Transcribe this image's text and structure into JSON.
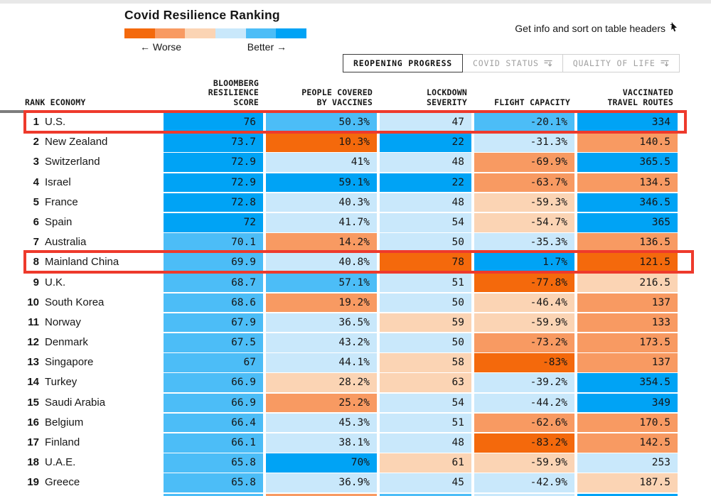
{
  "header": {
    "title": "Covid Resilience Ranking",
    "legend": {
      "worse": "← Worse",
      "better": "Better →",
      "colors": [
        "#f4690c",
        "#f89a62",
        "#fbd4b4",
        "#c9e8fb",
        "#4cbdf7",
        "#00a3f5"
      ]
    },
    "hint": "Get info and sort on table headers",
    "tabs": [
      {
        "label": "REOPENING PROGRESS",
        "active": true,
        "sort_icon": false
      },
      {
        "label": "COVID STATUS",
        "active": false,
        "sort_icon": true
      },
      {
        "label": "QUALITY OF LIFE",
        "active": false,
        "sort_icon": true
      }
    ]
  },
  "palette": {
    "c1": "#f4690c",
    "c2": "#f89a62",
    "c3": "#fbd4b4",
    "c4": "#c9e8fb",
    "c5": "#4cbdf7",
    "c6": "#00a3f5"
  },
  "table": {
    "headers": {
      "rank_economy": "RANK ECONOMY",
      "score": "BLOOMBERG\nRESILIENCE\nSCORE",
      "vaccines": "PEOPLE COVERED\nBY VACCINES",
      "lockdown": "LOCKDOWN\nSEVERITY",
      "flight": "FLIGHT CAPACITY",
      "routes": "VACCINATED\nTRAVEL ROUTES"
    },
    "rows": [
      {
        "rank": "1",
        "economy": "U.S.",
        "highlight": true,
        "score": {
          "v": "76",
          "c": "c6"
        },
        "vaccines": {
          "v": "50.3%",
          "c": "c5"
        },
        "lockdown": {
          "v": "47",
          "c": "c4"
        },
        "flight": {
          "v": "-20.1%",
          "c": "c5"
        },
        "routes": {
          "v": "334",
          "c": "c6"
        }
      },
      {
        "rank": "2",
        "economy": "New Zealand",
        "highlight": false,
        "score": {
          "v": "73.7",
          "c": "c6"
        },
        "vaccines": {
          "v": "10.3%",
          "c": "c1"
        },
        "lockdown": {
          "v": "22",
          "c": "c6"
        },
        "flight": {
          "v": "-31.3%",
          "c": "c4"
        },
        "routes": {
          "v": "140.5",
          "c": "c2"
        }
      },
      {
        "rank": "3",
        "economy": "Switzerland",
        "highlight": false,
        "score": {
          "v": "72.9",
          "c": "c6"
        },
        "vaccines": {
          "v": "41%",
          "c": "c4"
        },
        "lockdown": {
          "v": "48",
          "c": "c4"
        },
        "flight": {
          "v": "-69.9%",
          "c": "c2"
        },
        "routes": {
          "v": "365.5",
          "c": "c6"
        }
      },
      {
        "rank": "4",
        "economy": "Israel",
        "highlight": false,
        "score": {
          "v": "72.9",
          "c": "c6"
        },
        "vaccines": {
          "v": "59.1%",
          "c": "c6"
        },
        "lockdown": {
          "v": "22",
          "c": "c6"
        },
        "flight": {
          "v": "-63.7%",
          "c": "c2"
        },
        "routes": {
          "v": "134.5",
          "c": "c2"
        }
      },
      {
        "rank": "5",
        "economy": "France",
        "highlight": false,
        "score": {
          "v": "72.8",
          "c": "c6"
        },
        "vaccines": {
          "v": "40.3%",
          "c": "c4"
        },
        "lockdown": {
          "v": "48",
          "c": "c4"
        },
        "flight": {
          "v": "-59.3%",
          "c": "c3"
        },
        "routes": {
          "v": "346.5",
          "c": "c6"
        }
      },
      {
        "rank": "6",
        "economy": "Spain",
        "highlight": false,
        "score": {
          "v": "72",
          "c": "c6"
        },
        "vaccines": {
          "v": "41.7%",
          "c": "c4"
        },
        "lockdown": {
          "v": "54",
          "c": "c4"
        },
        "flight": {
          "v": "-54.7%",
          "c": "c3"
        },
        "routes": {
          "v": "365",
          "c": "c6"
        }
      },
      {
        "rank": "7",
        "economy": "Australia",
        "highlight": false,
        "score": {
          "v": "70.1",
          "c": "c5"
        },
        "vaccines": {
          "v": "14.2%",
          "c": "c2"
        },
        "lockdown": {
          "v": "50",
          "c": "c4"
        },
        "flight": {
          "v": "-35.3%",
          "c": "c4"
        },
        "routes": {
          "v": "136.5",
          "c": "c2"
        }
      },
      {
        "rank": "8",
        "economy": "Mainland China",
        "highlight": true,
        "score": {
          "v": "69.9",
          "c": "c5"
        },
        "vaccines": {
          "v": "40.8%",
          "c": "c4"
        },
        "lockdown": {
          "v": "78",
          "c": "c1"
        },
        "flight": {
          "v": "1.7%",
          "c": "c6"
        },
        "routes": {
          "v": "121.5",
          "c": "c1"
        }
      },
      {
        "rank": "9",
        "economy": "U.K.",
        "highlight": false,
        "score": {
          "v": "68.7",
          "c": "c5"
        },
        "vaccines": {
          "v": "57.1%",
          "c": "c5"
        },
        "lockdown": {
          "v": "51",
          "c": "c4"
        },
        "flight": {
          "v": "-77.8%",
          "c": "c1"
        },
        "routes": {
          "v": "216.5",
          "c": "c3"
        }
      },
      {
        "rank": "10",
        "economy": "South Korea",
        "highlight": false,
        "score": {
          "v": "68.6",
          "c": "c5"
        },
        "vaccines": {
          "v": "19.2%",
          "c": "c2"
        },
        "lockdown": {
          "v": "50",
          "c": "c4"
        },
        "flight": {
          "v": "-46.4%",
          "c": "c3"
        },
        "routes": {
          "v": "137",
          "c": "c2"
        }
      },
      {
        "rank": "11",
        "economy": "Norway",
        "highlight": false,
        "score": {
          "v": "67.9",
          "c": "c5"
        },
        "vaccines": {
          "v": "36.5%",
          "c": "c4"
        },
        "lockdown": {
          "v": "59",
          "c": "c3"
        },
        "flight": {
          "v": "-59.9%",
          "c": "c3"
        },
        "routes": {
          "v": "133",
          "c": "c2"
        }
      },
      {
        "rank": "12",
        "economy": "Denmark",
        "highlight": false,
        "score": {
          "v": "67.5",
          "c": "c5"
        },
        "vaccines": {
          "v": "43.2%",
          "c": "c4"
        },
        "lockdown": {
          "v": "50",
          "c": "c4"
        },
        "flight": {
          "v": "-73.2%",
          "c": "c2"
        },
        "routes": {
          "v": "173.5",
          "c": "c2"
        }
      },
      {
        "rank": "13",
        "economy": "Singapore",
        "highlight": false,
        "score": {
          "v": "67",
          "c": "c5"
        },
        "vaccines": {
          "v": "44.1%",
          "c": "c4"
        },
        "lockdown": {
          "v": "58",
          "c": "c3"
        },
        "flight": {
          "v": "-83%",
          "c": "c1"
        },
        "routes": {
          "v": "137",
          "c": "c2"
        }
      },
      {
        "rank": "14",
        "economy": "Turkey",
        "highlight": false,
        "score": {
          "v": "66.9",
          "c": "c5"
        },
        "vaccines": {
          "v": "28.2%",
          "c": "c3"
        },
        "lockdown": {
          "v": "63",
          "c": "c3"
        },
        "flight": {
          "v": "-39.2%",
          "c": "c4"
        },
        "routes": {
          "v": "354.5",
          "c": "c6"
        }
      },
      {
        "rank": "15",
        "economy": "Saudi Arabia",
        "highlight": false,
        "score": {
          "v": "66.9",
          "c": "c5"
        },
        "vaccines": {
          "v": "25.2%",
          "c": "c2"
        },
        "lockdown": {
          "v": "54",
          "c": "c4"
        },
        "flight": {
          "v": "-44.2%",
          "c": "c4"
        },
        "routes": {
          "v": "349",
          "c": "c6"
        }
      },
      {
        "rank": "16",
        "economy": "Belgium",
        "highlight": false,
        "score": {
          "v": "66.4",
          "c": "c5"
        },
        "vaccines": {
          "v": "45.3%",
          "c": "c4"
        },
        "lockdown": {
          "v": "51",
          "c": "c4"
        },
        "flight": {
          "v": "-62.6%",
          "c": "c2"
        },
        "routes": {
          "v": "170.5",
          "c": "c2"
        }
      },
      {
        "rank": "17",
        "economy": "Finland",
        "highlight": false,
        "score": {
          "v": "66.1",
          "c": "c5"
        },
        "vaccines": {
          "v": "38.1%",
          "c": "c4"
        },
        "lockdown": {
          "v": "48",
          "c": "c4"
        },
        "flight": {
          "v": "-83.2%",
          "c": "c1"
        },
        "routes": {
          "v": "142.5",
          "c": "c2"
        }
      },
      {
        "rank": "18",
        "economy": "U.A.E.",
        "highlight": false,
        "score": {
          "v": "65.8",
          "c": "c5"
        },
        "vaccines": {
          "v": "70%",
          "c": "c6"
        },
        "lockdown": {
          "v": "61",
          "c": "c3"
        },
        "flight": {
          "v": "-59.9%",
          "c": "c3"
        },
        "routes": {
          "v": "253",
          "c": "c4"
        }
      },
      {
        "rank": "19",
        "economy": "Greece",
        "highlight": false,
        "score": {
          "v": "65.8",
          "c": "c5"
        },
        "vaccines": {
          "v": "36.9%",
          "c": "c4"
        },
        "lockdown": {
          "v": "45",
          "c": "c4"
        },
        "flight": {
          "v": "-42.9%",
          "c": "c4"
        },
        "routes": {
          "v": "187.5",
          "c": "c3"
        }
      }
    ],
    "partial_row_colors": [
      "c5",
      "c2",
      "c5",
      "c4",
      "c6"
    ]
  }
}
